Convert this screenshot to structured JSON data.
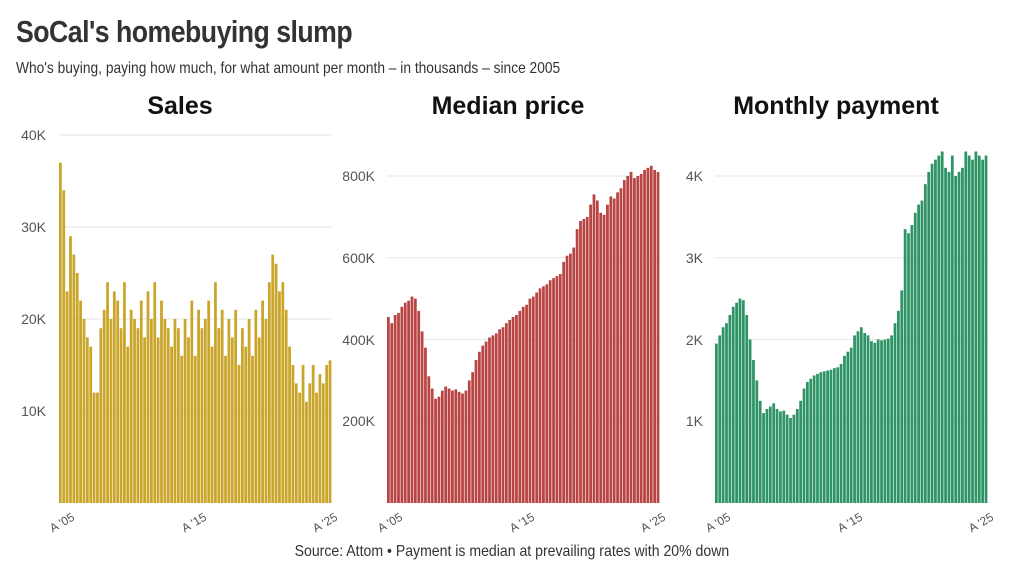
{
  "header": {
    "title": "SoCal's homebuying slump",
    "subtitle": "Who's buying, paying how much, for what amount per month – in thousands – since 2005"
  },
  "footer": {
    "source": "Source: Attom • Payment is median at prevailing rates with 20% down"
  },
  "chart_data": [
    {
      "type": "bar",
      "title": "Sales",
      "color": "#c9a52a",
      "xlabel": "",
      "ylabel": "",
      "ylim": [
        0,
        40000
      ],
      "yticks": [
        10000,
        20000,
        30000,
        40000
      ],
      "ytick_labels": [
        "10K",
        "20K",
        "30K",
        "40K"
      ],
      "xtick_labels": [
        "A '05",
        "A '15",
        "A '25"
      ],
      "x_range": [
        "Aug 2005",
        "Aug 2025"
      ],
      "grid": true,
      "frequency": "quarterly (approx. from monthly bars)",
      "values": [
        37000,
        34000,
        23000,
        29000,
        27000,
        25000,
        22000,
        20000,
        18000,
        17000,
        12000,
        12000,
        19000,
        21000,
        24000,
        20000,
        23000,
        22000,
        19000,
        24000,
        17000,
        21000,
        20000,
        19000,
        22000,
        18000,
        23000,
        20000,
        24000,
        18000,
        22000,
        20000,
        19000,
        17000,
        20000,
        19000,
        16000,
        20000,
        18000,
        22000,
        16000,
        21000,
        19000,
        20000,
        22000,
        17000,
        24000,
        19000,
        21000,
        16000,
        20000,
        18000,
        21000,
        15000,
        19000,
        17000,
        20000,
        16000,
        21000,
        18000,
        22000,
        20000,
        24000,
        27000,
        26000,
        23000,
        24000,
        21000,
        17000,
        15000,
        13000,
        12000,
        15000,
        11000,
        13000,
        15000,
        12000,
        14000,
        13000,
        15000,
        15500
      ]
    },
    {
      "type": "bar",
      "title": "Median price",
      "color": "#b94444",
      "xlabel": "",
      "ylabel": "",
      "ylim": [
        0,
        800000
      ],
      "yticks": [
        200000,
        400000,
        600000,
        800000
      ],
      "ytick_labels": [
        "200K",
        "400K",
        "600K",
        "800K"
      ],
      "xtick_labels": [
        "A '05",
        "A '15",
        "A '25"
      ],
      "x_range": [
        "Aug 2005",
        "Aug 2025"
      ],
      "grid": true,
      "frequency": "quarterly (approx. from monthly bars)",
      "values": [
        455000,
        440000,
        460000,
        465000,
        480000,
        490000,
        495000,
        505000,
        500000,
        470000,
        420000,
        380000,
        310000,
        280000,
        255000,
        260000,
        275000,
        285000,
        280000,
        275000,
        278000,
        272000,
        268000,
        275000,
        300000,
        320000,
        350000,
        370000,
        385000,
        395000,
        405000,
        410000,
        415000,
        425000,
        430000,
        440000,
        448000,
        455000,
        460000,
        470000,
        480000,
        485000,
        500000,
        505000,
        515000,
        525000,
        530000,
        535000,
        545000,
        550000,
        555000,
        560000,
        590000,
        605000,
        610000,
        625000,
        670000,
        690000,
        695000,
        700000,
        730000,
        755000,
        740000,
        710000,
        705000,
        730000,
        750000,
        745000,
        760000,
        770000,
        790000,
        800000,
        810000,
        795000,
        800000,
        805000,
        815000,
        820000,
        825000,
        815000,
        810000
      ]
    },
    {
      "type": "bar",
      "title": "Monthly payment",
      "color": "#2e9466",
      "xlabel": "",
      "ylabel": "",
      "ylim": [
        0,
        4000
      ],
      "yticks": [
        1000,
        2000,
        3000,
        4000
      ],
      "ytick_labels": [
        "1K",
        "2K",
        "3K",
        "4K"
      ],
      "xtick_labels": [
        "A '05",
        "A '15",
        "A '25"
      ],
      "x_range": [
        "Aug 2005",
        "Aug 2025"
      ],
      "grid": true,
      "frequency": "quarterly (approx. from monthly bars)",
      "values": [
        1950,
        2050,
        2150,
        2200,
        2300,
        2400,
        2450,
        2500,
        2480,
        2300,
        2000,
        1750,
        1500,
        1250,
        1100,
        1150,
        1180,
        1220,
        1150,
        1120,
        1130,
        1080,
        1040,
        1080,
        1150,
        1250,
        1400,
        1480,
        1520,
        1560,
        1580,
        1600,
        1610,
        1620,
        1630,
        1650,
        1660,
        1700,
        1800,
        1850,
        1900,
        2050,
        2100,
        2150,
        2080,
        2050,
        1980,
        1960,
        2000,
        1990,
        2000,
        2010,
        2050,
        2200,
        2350,
        2600,
        3350,
        3300,
        3400,
        3550,
        3650,
        3700,
        3900,
        4050,
        4150,
        4200,
        4250,
        4300,
        4100,
        4050,
        4250,
        4000,
        4050,
        4100,
        4300,
        4250,
        4200,
        4300,
        4250,
        4200,
        4250
      ]
    }
  ]
}
